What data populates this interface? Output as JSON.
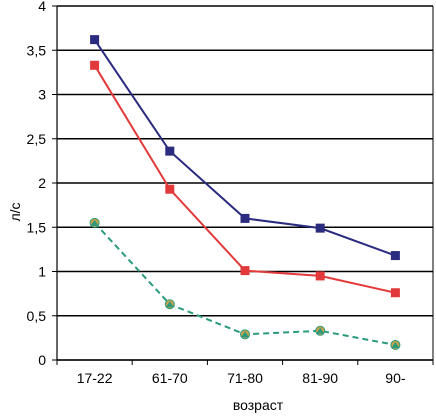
{
  "chart_data": {
    "type": "line",
    "title": "",
    "xlabel": "возраст",
    "ylabel": "л/с",
    "categories": [
      "17-22",
      "61-70",
      "71-80",
      "81-90",
      "90-"
    ],
    "ylim": [
      0,
      4
    ],
    "yticks": [
      "0",
      "0,5",
      "1",
      "1,5",
      "2",
      "2,5",
      "3",
      "3,5",
      "4"
    ],
    "grid": true,
    "legend": "none",
    "series": [
      {
        "color": "#2b2b7f",
        "marker": "square",
        "line_style": "solid",
        "values": [
          3.62,
          2.36,
          1.6,
          1.49,
          1.18
        ]
      },
      {
        "color": "#e23a3a",
        "marker": "square",
        "line_style": "solid",
        "values": [
          3.33,
          1.93,
          1.01,
          0.95,
          0.76
        ]
      },
      {
        "color": "#2a9a7c",
        "marker": "circle",
        "marker_color": "#c9a24a",
        "line_style": "dashed",
        "values": [
          1.55,
          0.63,
          0.29,
          0.33,
          0.17
        ]
      }
    ]
  }
}
